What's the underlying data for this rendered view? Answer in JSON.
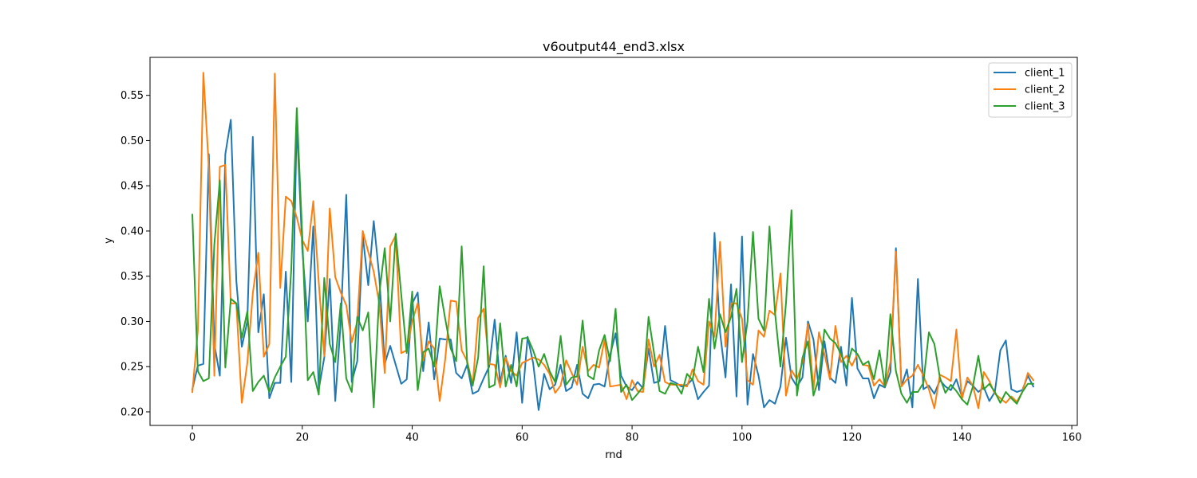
{
  "chart_data": {
    "type": "line",
    "title": "v6output44_end3.xlsx",
    "xlabel": "rnd",
    "ylabel": "y",
    "xlim": [
      -7.7,
      161
    ],
    "ylim": [
      0.185,
      0.592
    ],
    "xticks": [
      0,
      20,
      40,
      60,
      80,
      100,
      120,
      140,
      160
    ],
    "yticks": [
      0.2,
      0.25,
      0.3,
      0.35,
      0.4,
      0.45,
      0.5,
      0.55
    ],
    "xtick_labels": [
      "0",
      "20",
      "40",
      "60",
      "80",
      "100",
      "120",
      "140",
      "160"
    ],
    "ytick_labels": [
      "0.20",
      "0.25",
      "0.30",
      "0.35",
      "0.40",
      "0.45",
      "0.50",
      "0.55"
    ],
    "grid": false,
    "legend": "top-right",
    "x": [
      0,
      1,
      2,
      3,
      4,
      5,
      6,
      7,
      8,
      9,
      10,
      11,
      12,
      13,
      14,
      15,
      16,
      17,
      18,
      19,
      20,
      21,
      22,
      23,
      24,
      25,
      26,
      27,
      28,
      29,
      30,
      31,
      32,
      33,
      34,
      35,
      36,
      37,
      38,
      39,
      40,
      41,
      42,
      43,
      44,
      45,
      46,
      47,
      48,
      49,
      50,
      51,
      52,
      53,
      54,
      55,
      56,
      57,
      58,
      59,
      60,
      61,
      62,
      63,
      64,
      65,
      66,
      67,
      68,
      69,
      70,
      71,
      72,
      73,
      74,
      75,
      76,
      77,
      78,
      79,
      80,
      81,
      82,
      83,
      84,
      85,
      86,
      87,
      88,
      89,
      90,
      91,
      92,
      93,
      94,
      95,
      96,
      97,
      98,
      99,
      100,
      101,
      102,
      103,
      104,
      105,
      106,
      107,
      108,
      109,
      110,
      111,
      112,
      113,
      114,
      115,
      116,
      117,
      118,
      119,
      120,
      121,
      122,
      123,
      124,
      125,
      126,
      127,
      128,
      129,
      130,
      131,
      132,
      133,
      134,
      135,
      136,
      137,
      138,
      139,
      140,
      141,
      142,
      143,
      144,
      145,
      146,
      147,
      148,
      149,
      150,
      151,
      152,
      153
    ],
    "series": [
      {
        "name": "client_1",
        "color": "#1f77b4",
        "values": [
          0.225,
          0.251,
          0.253,
          0.485,
          0.275,
          0.24,
          0.485,
          0.523,
          0.345,
          0.272,
          0.3,
          0.504,
          0.288,
          0.33,
          0.215,
          0.232,
          0.232,
          0.355,
          0.233,
          0.52,
          0.38,
          0.3,
          0.405,
          0.225,
          0.26,
          0.347,
          0.212,
          0.3,
          0.44,
          0.233,
          0.256,
          0.395,
          0.34,
          0.411,
          0.35,
          0.253,
          0.273,
          0.252,
          0.231,
          0.236,
          0.32,
          0.332,
          0.245,
          0.299,
          0.236,
          0.281,
          0.28,
          0.28,
          0.243,
          0.237,
          0.252,
          0.22,
          0.223,
          0.237,
          0.25,
          0.302,
          0.232,
          0.262,
          0.232,
          0.288,
          0.21,
          0.283,
          0.254,
          0.202,
          0.242,
          0.225,
          0.23,
          0.252,
          0.223,
          0.227,
          0.252,
          0.22,
          0.215,
          0.23,
          0.231,
          0.228,
          0.263,
          0.287,
          0.24,
          0.228,
          0.224,
          0.233,
          0.226,
          0.27,
          0.232,
          0.234,
          0.295,
          0.235,
          0.232,
          0.228,
          0.23,
          0.236,
          0.214,
          0.222,
          0.229,
          0.398,
          0.288,
          0.238,
          0.341,
          0.217,
          0.394,
          0.208,
          0.264,
          0.24,
          0.205,
          0.213,
          0.209,
          0.228,
          0.282,
          0.238,
          0.228,
          0.238,
          0.3,
          0.28,
          0.224,
          0.278,
          0.238,
          0.232,
          0.272,
          0.229,
          0.326,
          0.248,
          0.237,
          0.237,
          0.215,
          0.23,
          0.227,
          0.244,
          0.381,
          0.228,
          0.247,
          0.205,
          0.347,
          0.225,
          0.229,
          0.22,
          0.235,
          0.228,
          0.224,
          0.236,
          0.217,
          0.234,
          0.229,
          0.222,
          0.227,
          0.212,
          0.222,
          0.268,
          0.279,
          0.225,
          0.222,
          0.224,
          0.24,
          0.228
        ]
      },
      {
        "name": "client_2",
        "color": "#ff7f0e",
        "values": [
          0.222,
          0.29,
          0.575,
          0.47,
          0.24,
          0.471,
          0.473,
          0.32,
          0.32,
          0.21,
          0.254,
          0.331,
          0.376,
          0.261,
          0.275,
          0.574,
          0.337,
          0.438,
          0.433,
          0.415,
          0.39,
          0.378,
          0.433,
          0.343,
          0.262,
          0.425,
          0.349,
          0.332,
          0.318,
          0.277,
          0.3,
          0.4,
          0.377,
          0.355,
          0.32,
          0.243,
          0.383,
          0.395,
          0.265,
          0.268,
          0.3,
          0.32,
          0.257,
          0.278,
          0.27,
          0.212,
          0.258,
          0.323,
          0.322,
          0.268,
          0.256,
          0.23,
          0.304,
          0.314,
          0.253,
          0.252,
          0.227,
          0.26,
          0.245,
          0.24,
          0.254,
          0.257,
          0.26,
          0.258,
          0.252,
          0.242,
          0.221,
          0.229,
          0.257,
          0.243,
          0.23,
          0.272,
          0.245,
          0.252,
          0.249,
          0.28,
          0.228,
          0.229,
          0.23,
          0.214,
          0.235,
          0.223,
          0.222,
          0.28,
          0.25,
          0.263,
          0.233,
          0.23,
          0.23,
          0.23,
          0.228,
          0.247,
          0.234,
          0.23,
          0.3,
          0.283,
          0.388,
          0.272,
          0.32,
          0.32,
          0.303,
          0.235,
          0.23,
          0.29,
          0.283,
          0.312,
          0.307,
          0.353,
          0.218,
          0.246,
          0.236,
          0.254,
          0.297,
          0.225,
          0.288,
          0.264,
          0.236,
          0.295,
          0.255,
          0.262,
          0.251,
          0.264,
          0.252,
          0.251,
          0.229,
          0.236,
          0.228,
          0.255,
          0.377,
          0.228,
          0.236,
          0.24,
          0.252,
          0.24,
          0.225,
          0.204,
          0.241,
          0.238,
          0.234,
          0.291,
          0.214,
          0.238,
          0.229,
          0.204,
          0.244,
          0.234,
          0.22,
          0.215,
          0.21,
          0.217,
          0.211,
          0.222,
          0.243,
          0.235
        ]
      },
      {
        "name": "client_3",
        "color": "#2ca02c",
        "values": [
          0.418,
          0.245,
          0.234,
          0.237,
          0.385,
          0.456,
          0.249,
          0.325,
          0.32,
          0.282,
          0.311,
          0.223,
          0.233,
          0.24,
          0.222,
          0.238,
          0.25,
          0.261,
          0.358,
          0.536,
          0.394,
          0.235,
          0.244,
          0.219,
          0.348,
          0.275,
          0.255,
          0.32,
          0.237,
          0.222,
          0.305,
          0.29,
          0.31,
          0.205,
          0.33,
          0.381,
          0.3,
          0.397,
          0.33,
          0.265,
          0.333,
          0.224,
          0.266,
          0.27,
          0.25,
          0.339,
          0.303,
          0.27,
          0.256,
          0.383,
          0.254,
          0.229,
          0.26,
          0.361,
          0.227,
          0.23,
          0.298,
          0.228,
          0.252,
          0.228,
          0.281,
          0.282,
          0.268,
          0.25,
          0.264,
          0.245,
          0.233,
          0.284,
          0.23,
          0.238,
          0.239,
          0.301,
          0.24,
          0.236,
          0.268,
          0.285,
          0.256,
          0.314,
          0.222,
          0.23,
          0.213,
          0.22,
          0.228,
          0.305,
          0.265,
          0.223,
          0.22,
          0.232,
          0.23,
          0.22,
          0.242,
          0.235,
          0.272,
          0.244,
          0.325,
          0.27,
          0.308,
          0.288,
          0.305,
          0.336,
          0.255,
          0.3,
          0.399,
          0.303,
          0.29,
          0.405,
          0.31,
          0.25,
          0.32,
          0.423,
          0.218,
          0.26,
          0.278,
          0.218,
          0.238,
          0.291,
          0.281,
          0.276,
          0.264,
          0.248,
          0.27,
          0.264,
          0.252,
          0.256,
          0.236,
          0.268,
          0.228,
          0.308,
          0.245,
          0.22,
          0.21,
          0.222,
          0.222,
          0.232,
          0.288,
          0.275,
          0.238,
          0.221,
          0.23,
          0.223,
          0.214,
          0.208,
          0.228,
          0.262,
          0.225,
          0.231,
          0.222,
          0.21,
          0.222,
          0.215,
          0.209,
          0.222,
          0.231,
          0.231
        ]
      }
    ]
  }
}
